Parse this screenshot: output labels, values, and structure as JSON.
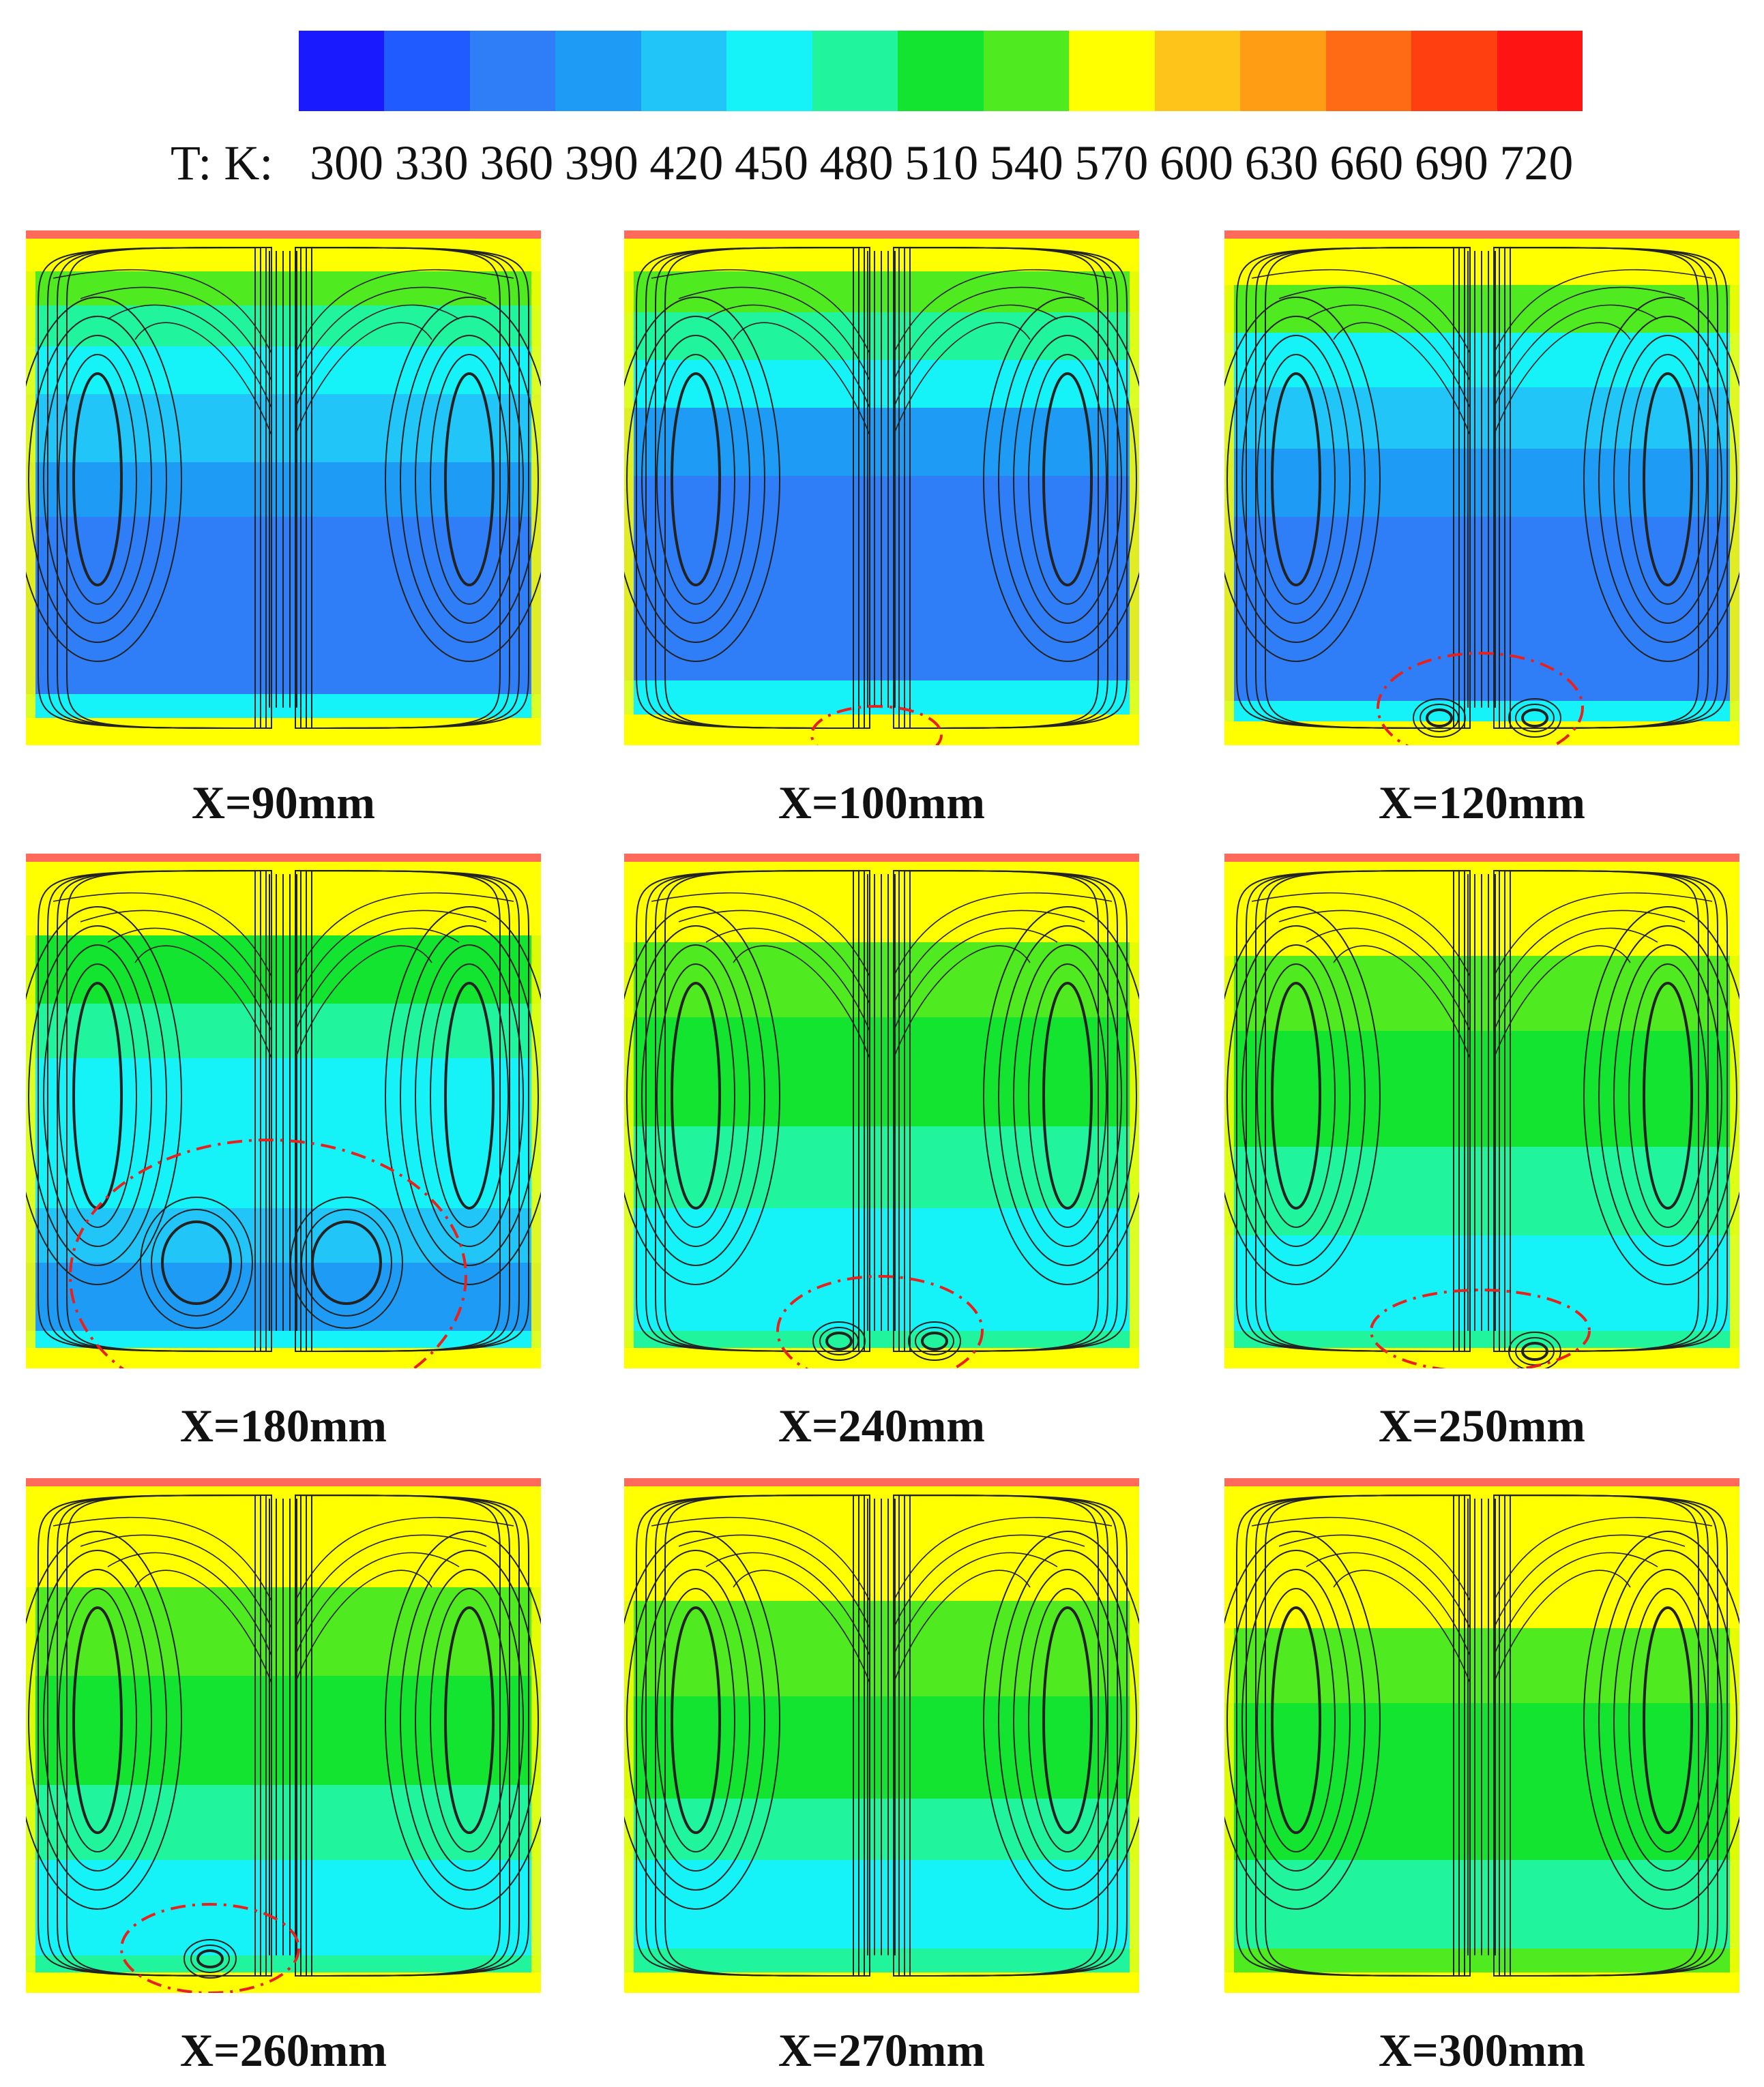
{
  "legend": {
    "title": "T: K:",
    "ticks": [
      "300",
      "330",
      "360",
      "390",
      "420",
      "450",
      "480",
      "510",
      "540",
      "570",
      "600",
      "630",
      "660",
      "690",
      "720"
    ],
    "colors": [
      "#1a1aff",
      "#1f5bff",
      "#2f7df7",
      "#1e9bf5",
      "#22c5f7",
      "#16f3f8",
      "#20f59d",
      "#12e42f",
      "#50ea20",
      "#ffff00",
      "#ffc41a",
      "#ff9e14",
      "#ff6a14",
      "#ff3f10",
      "#ff1414"
    ]
  },
  "panels": [
    {
      "label": "X=90mm",
      "vortices": "side",
      "highlight": "none"
    },
    {
      "label": "X=100mm",
      "vortices": "side",
      "highlight": "small-bottom"
    },
    {
      "label": "X=120mm",
      "vortices": "side",
      "highlight": "bottom-pair"
    },
    {
      "label": "X=180mm",
      "vortices": "side",
      "highlight": "large-bottom-pair"
    },
    {
      "label": "X=240mm",
      "vortices": "side",
      "highlight": "bottom-pair"
    },
    {
      "label": "X=250mm",
      "vortices": "side",
      "highlight": "bottom-single-right"
    },
    {
      "label": "X=260mm",
      "vortices": "side",
      "highlight": "bottom-single-center"
    },
    {
      "label": "X=270mm",
      "vortices": "side",
      "highlight": "none"
    },
    {
      "label": "X=300mm",
      "vortices": "side",
      "highlight": "none"
    }
  ],
  "colors": {
    "highlight": "#e8211c",
    "streamline": "#222222"
  }
}
